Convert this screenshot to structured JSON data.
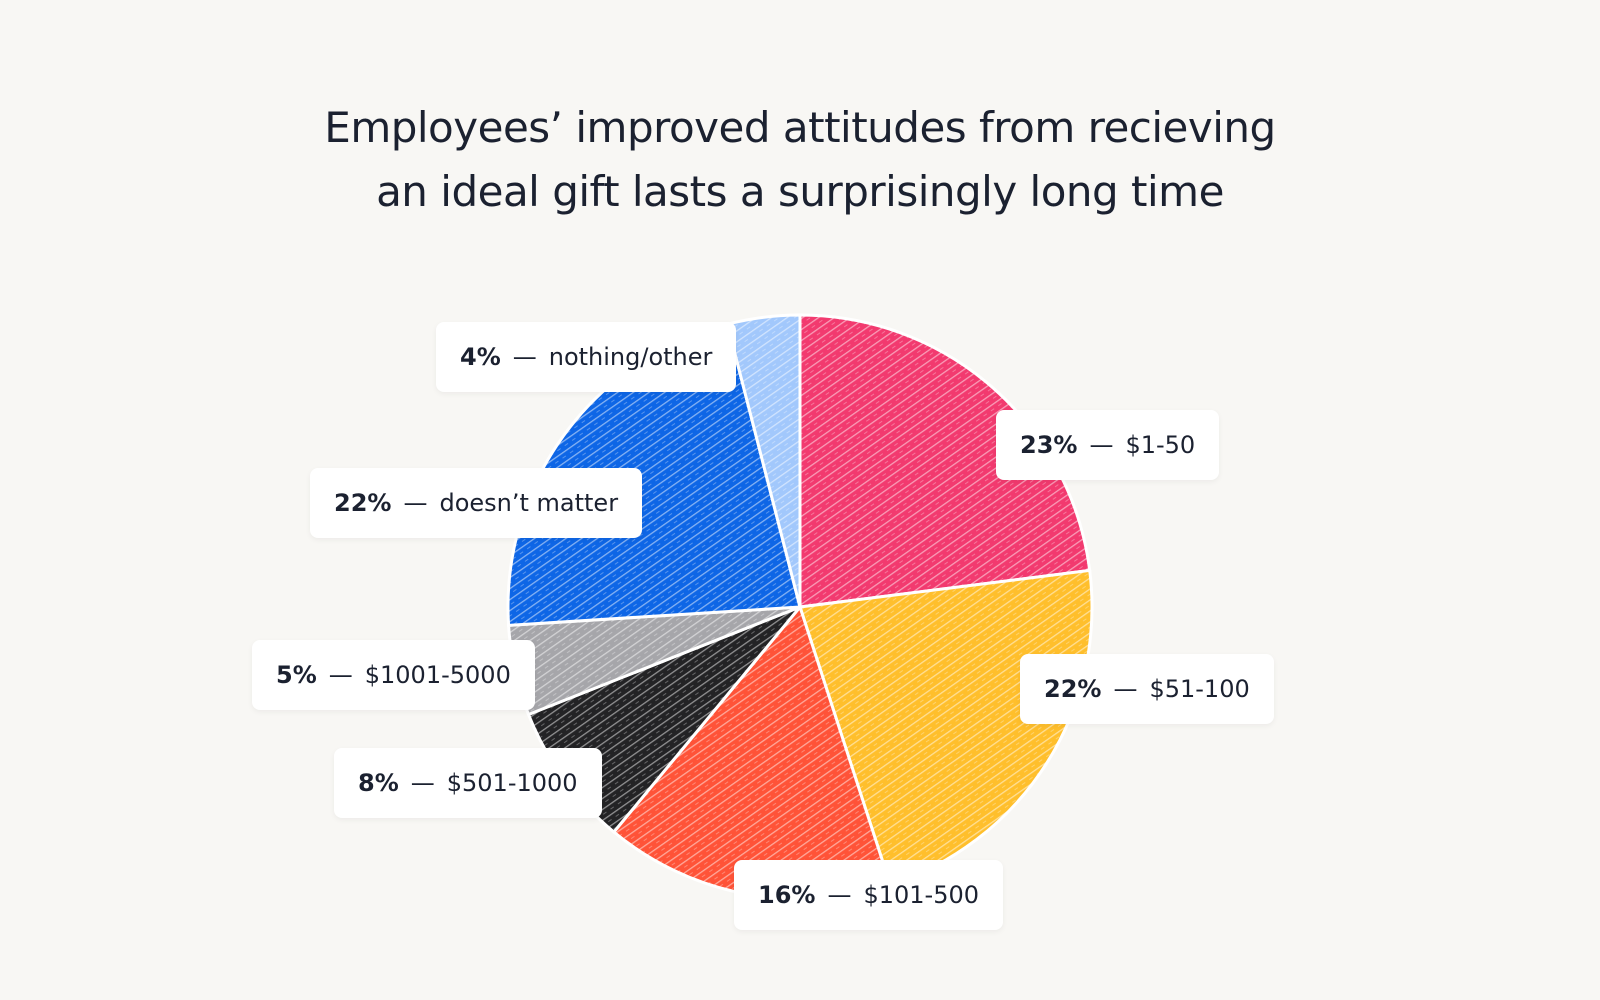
{
  "title_lines": [
    "Employees’ improved attitudes from recieving",
    "an ideal gift lasts a surprisingly long time"
  ],
  "separator": "—",
  "chart_data": {
    "type": "pie",
    "title": "Employees’ improved attitudes from recieving an ideal gift lasts a surprisingly long time",
    "slices": [
      {
        "label": "$1-50",
        "percent_label": "23%",
        "value": 23,
        "color": "#f23a6f"
      },
      {
        "label": "$51-100",
        "percent_label": "22%",
        "value": 22,
        "color": "#ffbf2c"
      },
      {
        "label": "$101-500",
        "percent_label": "16%",
        "value": 16,
        "color": "#ff5338"
      },
      {
        "label": "$501-1000",
        "percent_label": "8%",
        "value": 8,
        "color": "#232325"
      },
      {
        "label": "$1001-5000",
        "percent_label": "5%",
        "value": 5,
        "color": "#a6a6aa"
      },
      {
        "label": "doesn’t matter",
        "percent_label": "22%",
        "value": 22,
        "color": "#0e66e6"
      },
      {
        "label": "nothing/other",
        "percent_label": "4%",
        "value": 4,
        "color": "#a2c8fc"
      }
    ]
  }
}
